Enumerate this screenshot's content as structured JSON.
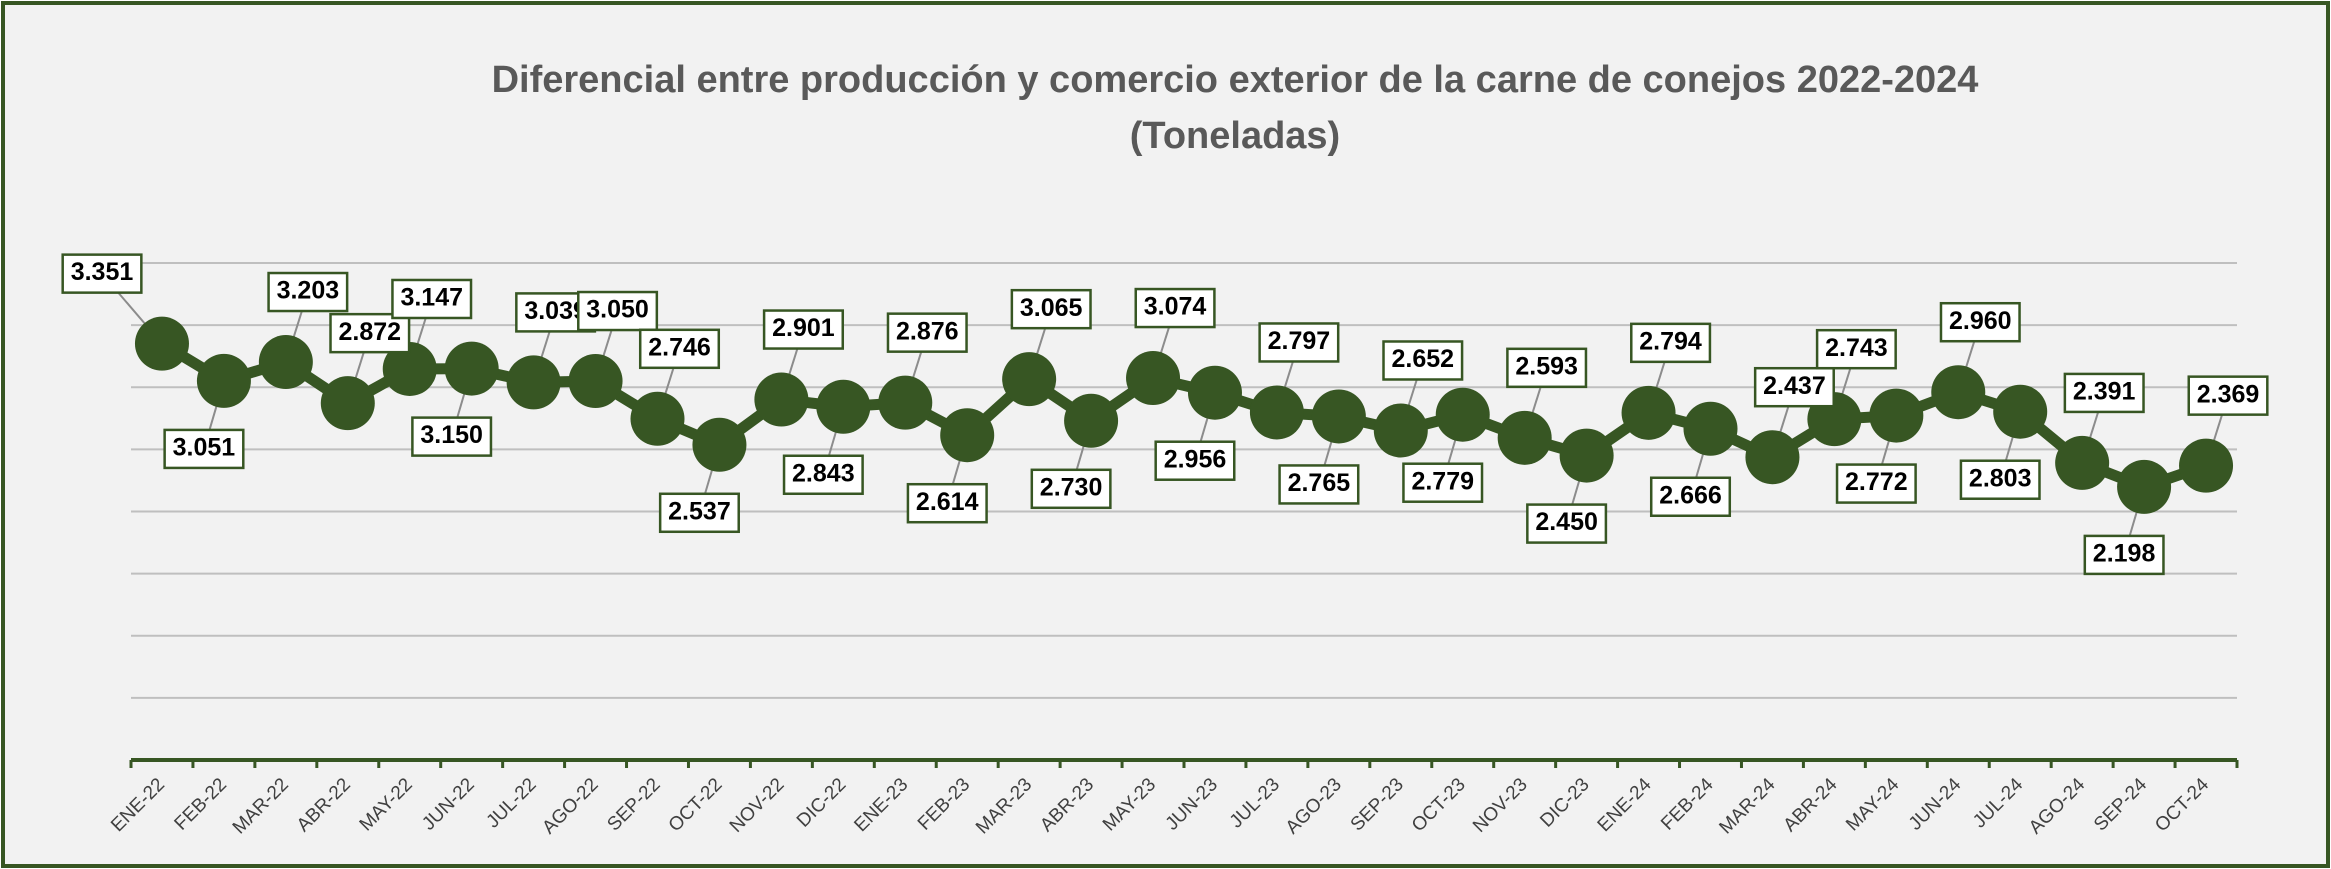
{
  "chart_data": {
    "type": "line",
    "title": "Diferencial entre producción y comercio exterior de la carne de conejos 2022-2024",
    "subtitle": "(Toneladas)",
    "categories": [
      "ENE-22",
      "FEB-22",
      "MAR-22",
      "ABR-22",
      "MAY-22",
      "JUN-22",
      "JUL-22",
      "AGO-22",
      "SEP-22",
      "OCT-22",
      "NOV-22",
      "DIC-22",
      "ENE-23",
      "FEB-23",
      "MAR-23",
      "ABR-23",
      "MAY-23",
      "JUN-23",
      "JUL-23",
      "AGO-23",
      "SEP-23",
      "OCT-23",
      "NOV-23",
      "DIC-23",
      "ENE-24",
      "FEB-24",
      "MAR-24",
      "ABR-24",
      "MAY-24",
      "JUN-24",
      "JUL-24",
      "AGO-24",
      "SEP-24",
      "OCT-24"
    ],
    "values": [
      3351,
      3051,
      3203,
      2872,
      3147,
      3150,
      3039,
      3050,
      2746,
      2537,
      2901,
      2843,
      2876,
      2614,
      3065,
      2730,
      3074,
      2956,
      2797,
      2765,
      2652,
      2779,
      2593,
      2450,
      2794,
      2666,
      2437,
      2743,
      2772,
      2960,
      2803,
      2391,
      2198,
      2369
    ],
    "value_labels": [
      "3.351",
      "3.051",
      "3.203",
      "2.872",
      "3.147",
      "3.150",
      "3.039",
      "3.050",
      "2.746",
      "2.537",
      "2.901",
      "2.843",
      "2.876",
      "2.614",
      "3.065",
      "2.730",
      "3.074",
      "2.956",
      "2.797",
      "2.765",
      "2.652",
      "2.779",
      "2.593",
      "2.450",
      "2.794",
      "2.666",
      "2.437",
      "2.743",
      "2.772",
      "2.960",
      "2.803",
      "2.391",
      "2.198",
      "2.369"
    ],
    "color": "#375623",
    "ylim": [
      0,
      4000
    ],
    "yticks": [
      0,
      500,
      1000,
      1500,
      2000,
      2500,
      3000,
      3500,
      4000
    ],
    "grid": true
  }
}
